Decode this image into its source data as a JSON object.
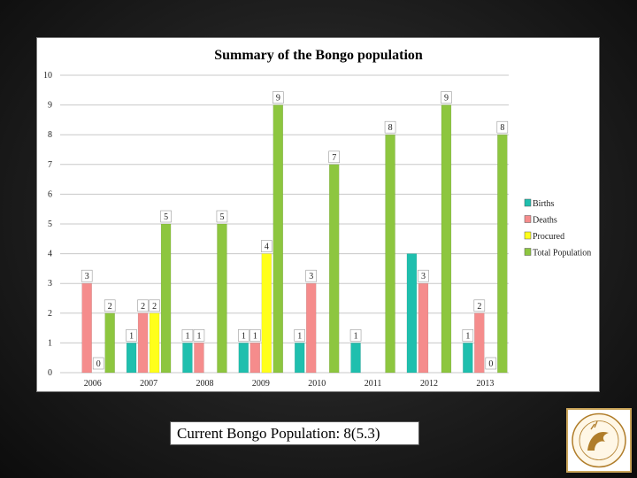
{
  "chart_data": {
    "type": "bar",
    "title": "Summary of the Bongo population",
    "categories": [
      "2006",
      "2007",
      "2008",
      "2009",
      "2010",
      "2011",
      "2012",
      "2013"
    ],
    "ylim": [
      0,
      10
    ],
    "yticks": [
      "0",
      "1",
      "2",
      "3",
      "4",
      "5",
      "6",
      "7",
      "8",
      "9",
      "10"
    ],
    "xlabel": "",
    "ylabel": "",
    "legend_position": "right",
    "series": [
      {
        "name": "Births",
        "color": "#1fbfae",
        "values": [
          null,
          1,
          1,
          1,
          1,
          1,
          4,
          1
        ],
        "labels": [
          "",
          "1",
          "1",
          "1",
          "1",
          "1",
          "",
          "1"
        ]
      },
      {
        "name": "Deaths",
        "color": "#f58c8c",
        "values": [
          3,
          2,
          1,
          1,
          3,
          null,
          3,
          2
        ],
        "labels": [
          "3",
          "2",
          "1",
          "1",
          "3",
          "",
          "3",
          "2"
        ]
      },
      {
        "name": "Procured",
        "color": "#ffff1a",
        "values": [
          0,
          2,
          null,
          4,
          null,
          null,
          null,
          0
        ],
        "labels": [
          "0",
          "2",
          "",
          "4",
          "",
          "",
          "",
          "0"
        ]
      },
      {
        "name": "Total Population",
        "color": "#8dc63f",
        "values": [
          2,
          5,
          5,
          9,
          7,
          8,
          9,
          8
        ],
        "labels": [
          "2",
          "5",
          "5",
          "9",
          "7",
          "8",
          "9",
          "8"
        ]
      }
    ]
  },
  "caption": "Current  Bongo Population: 8(5.3)",
  "logo": {
    "icon": "seal-logo-icon",
    "bg_color": "#ffffff",
    "emblem_color": "#b07d2a"
  }
}
